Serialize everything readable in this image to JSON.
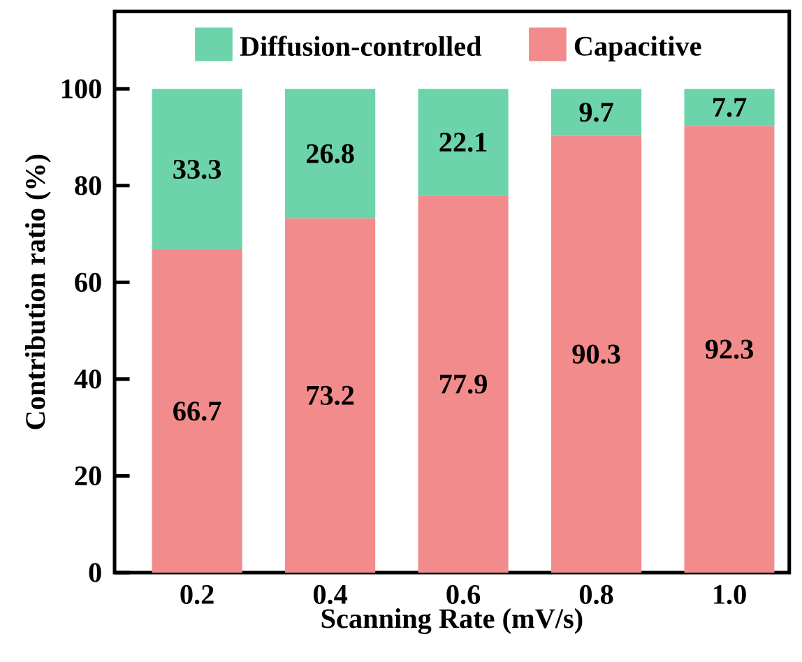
{
  "chart_data": {
    "type": "bar",
    "stacked": true,
    "xlabel": "Scanning Rate (mV/s)",
    "ylabel": "Contribution ratio (%)",
    "categories": [
      "0.2",
      "0.4",
      "0.6",
      "0.8",
      "1.0"
    ],
    "series": [
      {
        "name": "Capacitive",
        "color": "#f28b8b",
        "values": [
          66.7,
          73.2,
          77.9,
          90.3,
          92.3
        ]
      },
      {
        "name": "Diffusion-controlled",
        "color": "#6dd3ab",
        "values": [
          33.3,
          26.8,
          22.1,
          9.7,
          7.7
        ]
      }
    ],
    "ylim": [
      0,
      116
    ],
    "yticks": [
      0,
      20,
      40,
      60,
      80,
      100
    ],
    "data_labels": true,
    "legend": "top",
    "grid": false
  }
}
